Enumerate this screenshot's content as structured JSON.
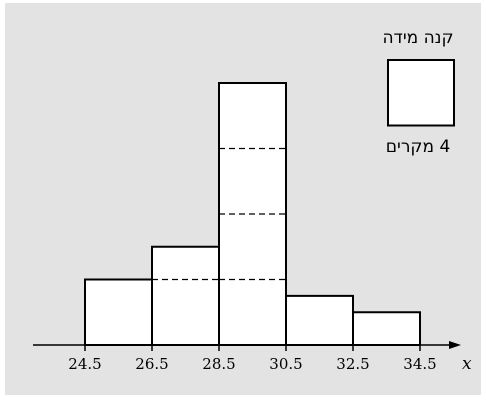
{
  "colors": {
    "panel_background": "#e3e3e3",
    "bar_fill": "#ffffff",
    "stroke": "#000000"
  },
  "chart_data": {
    "type": "bar",
    "subtype": "histogram",
    "xlabel": "x",
    "bin_edges": [
      24.5,
      26.5,
      28.5,
      30.5,
      32.5,
      34.5
    ],
    "tick_labels": [
      "24.5",
      "26.5",
      "28.5",
      "30.5",
      "32.5",
      "34.5"
    ],
    "values": [
      4,
      6,
      16,
      3,
      2
    ],
    "unit_square_cases": 4,
    "legend": {
      "title": "קנה מידה",
      "caption": "4 מקרים",
      "placement": "top-right"
    },
    "grid": false
  }
}
